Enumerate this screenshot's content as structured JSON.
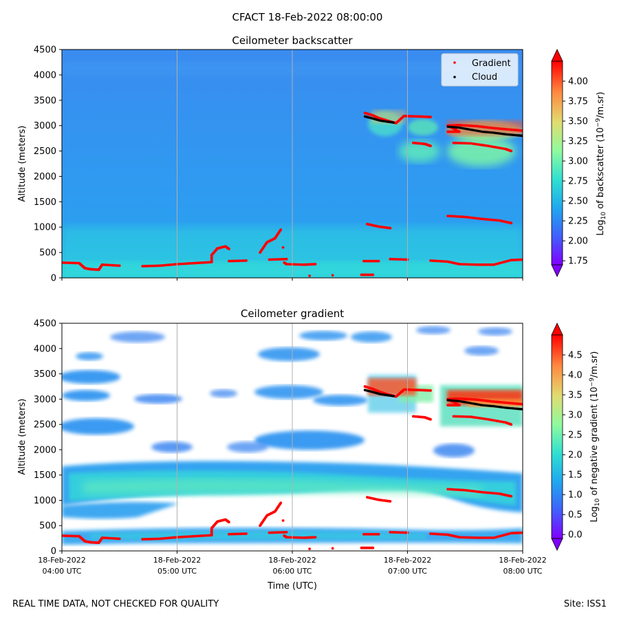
{
  "figure": {
    "suptitle": "CFACT 18-Feb-2022 08:00:00",
    "footer_left": "REAL TIME DATA, NOT CHECKED FOR QUALITY",
    "footer_right": "Site: ISS1",
    "xlabel": "Time (UTC)"
  },
  "chart_data": [
    {
      "type": "heatmap",
      "title": "Ceilometer backscatter",
      "ylabel": "Altitude (meters)",
      "xlabel": "",
      "xlim": [
        4.0,
        8.0
      ],
      "ylim": [
        0,
        4500
      ],
      "yticks": [
        0,
        500,
        1000,
        1500,
        2000,
        2500,
        3000,
        3500,
        4000,
        4500
      ],
      "xticks": [
        4,
        5,
        6,
        7,
        8
      ],
      "xtick_labels": [],
      "grid_x": true,
      "legend": {
        "placement": "top-right",
        "entries": [
          {
            "name": "Gradient",
            "color": "#ff0000"
          },
          {
            "name": "Cloud",
            "color": "#000000"
          }
        ]
      },
      "colorbar": {
        "label": "Log10 of backscatter (10^-9/m.sr)",
        "range": [
          1.7,
          4.25
        ],
        "ticks": [
          1.75,
          2.0,
          2.25,
          2.5,
          2.75,
          3.0,
          3.25,
          3.5,
          3.75,
          4.0
        ],
        "colormap": "rainbow",
        "extend": "both"
      }
    },
    {
      "type": "heatmap",
      "title": "Ceilometer gradient",
      "ylabel": "Altitude (meters)",
      "xlabel": "Time (UTC)",
      "xlim": [
        4.0,
        8.0
      ],
      "ylim": [
        0,
        4500
      ],
      "yticks": [
        0,
        500,
        1000,
        1500,
        2000,
        2500,
        3000,
        3500,
        4000,
        4500
      ],
      "xticks": [
        4,
        5,
        6,
        7,
        8
      ],
      "xtick_labels": [
        [
          "18-Feb-2022",
          "04:00 UTC"
        ],
        [
          "18-Feb-2022",
          "05:00 UTC"
        ],
        [
          "18-Feb-2022",
          "06:00 UTC"
        ],
        [
          "18-Feb-2022",
          "07:00 UTC"
        ],
        [
          "18-Feb-2022",
          "08:00 UTC"
        ]
      ],
      "grid_x": true,
      "colorbar": {
        "label": "Log10 of negative gradient (10^-9/m.sr)",
        "range": [
          -0.1,
          5.0
        ],
        "ticks": [
          0.0,
          0.5,
          1.0,
          1.5,
          2.0,
          2.5,
          3.0,
          3.5,
          4.0,
          4.5
        ],
        "colormap": "rainbow",
        "extend": "both"
      }
    }
  ],
  "gradient_points": [
    [
      4.0,
      300
    ],
    [
      4.15,
      290
    ],
    [
      4.18,
      230
    ],
    [
      4.2,
      190
    ],
    [
      4.25,
      170
    ],
    [
      4.32,
      160
    ],
    [
      4.35,
      260
    ],
    [
      4.5,
      240
    ],
    [
      4.7,
      230
    ],
    [
      4.85,
      240
    ],
    [
      5.0,
      270
    ],
    [
      5.15,
      290
    ],
    [
      5.3,
      310
    ],
    [
      5.3,
      450
    ],
    [
      5.35,
      580
    ],
    [
      5.42,
      620
    ],
    [
      5.45,
      570
    ],
    [
      5.45,
      330
    ],
    [
      5.6,
      340
    ],
    [
      5.8,
      360
    ],
    [
      5.95,
      370
    ],
    [
      5.72,
      500
    ],
    [
      5.78,
      700
    ],
    [
      5.85,
      780
    ],
    [
      5.9,
      950
    ],
    [
      5.92,
      600
    ],
    [
      5.93,
      300
    ],
    [
      5.95,
      270
    ],
    [
      6.1,
      260
    ],
    [
      6.2,
      270
    ],
    [
      6.15,
      40
    ],
    [
      6.35,
      50
    ],
    [
      6.6,
      60
    ],
    [
      6.7,
      60
    ],
    [
      6.62,
      330
    ],
    [
      6.75,
      330
    ],
    [
      6.65,
      1060
    ],
    [
      6.75,
      1010
    ],
    [
      6.85,
      980
    ],
    [
      6.85,
      370
    ],
    [
      7.0,
      360
    ],
    [
      7.2,
      340
    ],
    [
      7.35,
      320
    ],
    [
      7.45,
      270
    ],
    [
      7.6,
      260
    ],
    [
      7.75,
      260
    ],
    [
      7.9,
      350
    ],
    [
      8.0,
      360
    ],
    [
      7.35,
      1220
    ],
    [
      7.5,
      1200
    ],
    [
      7.65,
      1160
    ],
    [
      7.8,
      1130
    ],
    [
      7.9,
      1080
    ],
    [
      6.63,
      3250
    ],
    [
      6.7,
      3200
    ],
    [
      6.75,
      3150
    ],
    [
      6.82,
      3100
    ],
    [
      6.9,
      3050
    ],
    [
      6.97,
      3190
    ],
    [
      7.1,
      3180
    ],
    [
      7.2,
      3170
    ],
    [
      7.05,
      2660
    ],
    [
      7.15,
      2640
    ],
    [
      7.2,
      2600
    ],
    [
      7.35,
      2880
    ],
    [
      7.45,
      2880
    ],
    [
      7.35,
      3000
    ],
    [
      7.45,
      3010
    ],
    [
      7.6,
      2990
    ],
    [
      7.75,
      2950
    ],
    [
      7.9,
      2920
    ],
    [
      8.0,
      2900
    ],
    [
      7.4,
      2660
    ],
    [
      7.55,
      2650
    ],
    [
      7.7,
      2600
    ],
    [
      7.85,
      2540
    ],
    [
      7.9,
      2500
    ]
  ],
  "cloud_points": [
    [
      6.63,
      3180
    ],
    [
      6.7,
      3140
    ],
    [
      6.76,
      3100
    ],
    [
      6.82,
      3080
    ],
    [
      6.88,
      3060
    ],
    [
      7.35,
      2980
    ],
    [
      7.45,
      2960
    ],
    [
      7.55,
      2920
    ],
    [
      7.65,
      2880
    ],
    [
      7.75,
      2860
    ],
    [
      7.85,
      2830
    ],
    [
      7.95,
      2810
    ],
    [
      8.0,
      2800
    ]
  ]
}
